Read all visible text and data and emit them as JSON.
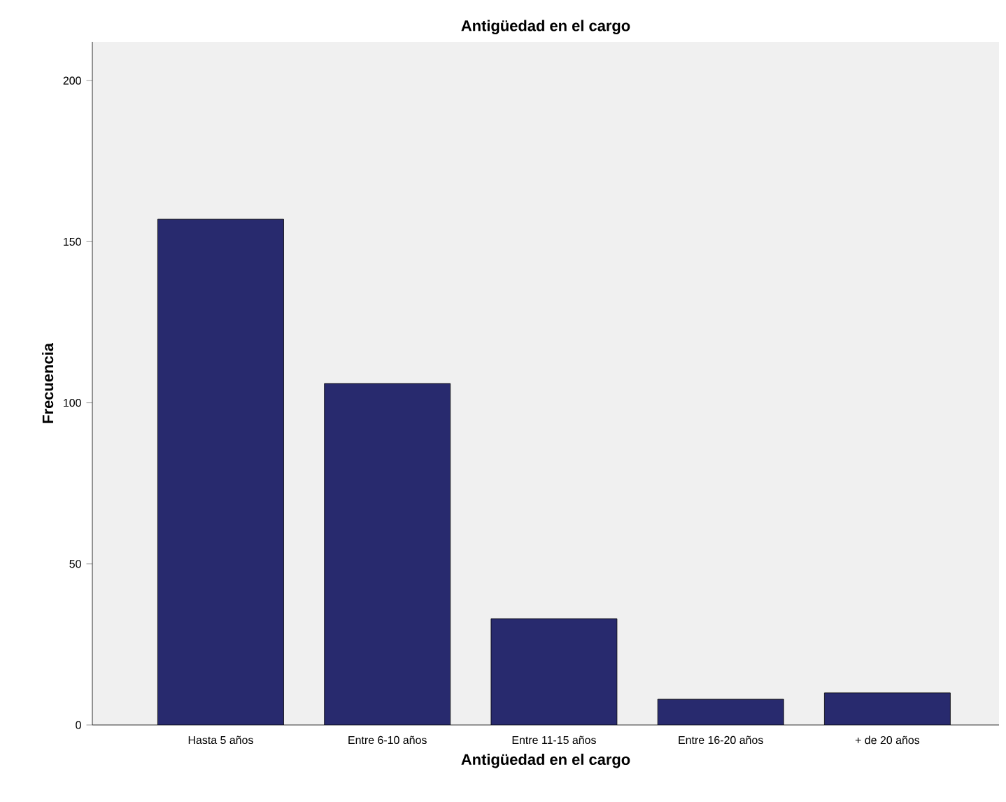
{
  "chart_data": {
    "type": "bar",
    "title": "Antigüedad en el cargo",
    "xlabel": "Antigüedad en el cargo",
    "ylabel": "Frecuencia",
    "categories": [
      "Hasta 5 años",
      "Entre 6-10 años",
      "Entre 11-15 años",
      "Entre 16-20 años",
      "+ de 20 años"
    ],
    "values": [
      157,
      106,
      33,
      8,
      10
    ],
    "color": "#282a6e",
    "ylim": [
      0,
      212
    ],
    "yticks": [
      0,
      50,
      100,
      150,
      200
    ]
  }
}
